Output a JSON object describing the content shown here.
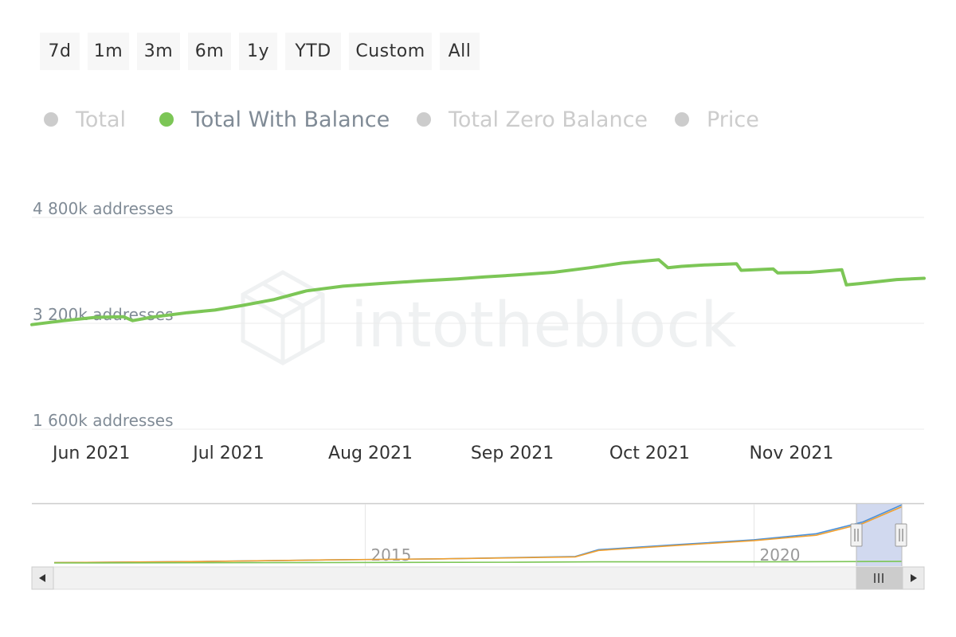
{
  "range_selector": {
    "buttons": [
      {
        "label": "7d",
        "name": "range-7d-button"
      },
      {
        "label": "1m",
        "name": "range-1m-button"
      },
      {
        "label": "3m",
        "name": "range-3m-button"
      },
      {
        "label": "6m",
        "name": "range-6m-button"
      },
      {
        "label": "1y",
        "name": "range-1y-button"
      },
      {
        "label": "YTD",
        "name": "range-ytd-button"
      },
      {
        "label": "Custom",
        "name": "range-custom-button"
      },
      {
        "label": "All",
        "name": "range-all-button"
      }
    ]
  },
  "legend": {
    "items": [
      {
        "label": "Total",
        "color": "#cccccc",
        "visible": false
      },
      {
        "label": "Total With Balance",
        "color": "#7cc656",
        "visible": true
      },
      {
        "label": "Total Zero Balance",
        "color": "#cccccc",
        "visible": false
      },
      {
        "label": "Price",
        "color": "#cccccc",
        "visible": false
      }
    ]
  },
  "watermark": "intotheblock",
  "chart_data": {
    "type": "line",
    "title": "",
    "xlabel": "",
    "ylabel": "",
    "y_tick_values": [
      1600000,
      3200000,
      4800000
    ],
    "y_tick_labels": [
      "1 600k addresses",
      "3 200k addresses",
      "4 800k addresses"
    ],
    "ylim": [
      1600000,
      4800000
    ],
    "xlim": [
      "2021-05-19",
      "2021-11-30"
    ],
    "x_tick_values": [
      "2021-06-01",
      "2021-07-01",
      "2021-08-01",
      "2021-09-01",
      "2021-10-01",
      "2021-11-01"
    ],
    "x_tick_labels": [
      "Jun 2021",
      "Jul 2021",
      "Aug 2021",
      "Sep 2021",
      "Oct 2021",
      "Nov 2021"
    ],
    "grid": true,
    "series": [
      {
        "name": "Total With Balance",
        "color": "#7cc656",
        "x": [
          "2021-05-19",
          "2021-05-26",
          "2021-06-02",
          "2021-06-08",
          "2021-06-10",
          "2021-06-14",
          "2021-06-22",
          "2021-06-28",
          "2021-07-04",
          "2021-07-11",
          "2021-07-18",
          "2021-07-26",
          "2021-08-03",
          "2021-08-12",
          "2021-08-20",
          "2021-08-26",
          "2021-09-02",
          "2021-09-10",
          "2021-09-18",
          "2021-09-25",
          "2021-10-03",
          "2021-10-05",
          "2021-10-08",
          "2021-10-13",
          "2021-10-20",
          "2021-10-21",
          "2021-10-28",
          "2021-10-29",
          "2021-11-05",
          "2021-11-12",
          "2021-11-13",
          "2021-11-16",
          "2021-11-24",
          "2021-11-30"
        ],
        "y": [
          3180000,
          3240000,
          3290000,
          3300000,
          3240000,
          3290000,
          3360000,
          3400000,
          3470000,
          3560000,
          3690000,
          3760000,
          3800000,
          3840000,
          3870000,
          3900000,
          3930000,
          3970000,
          4040000,
          4110000,
          4160000,
          4040000,
          4060000,
          4080000,
          4100000,
          4000000,
          4020000,
          3960000,
          3970000,
          4010000,
          3780000,
          3800000,
          3860000,
          3880000
        ]
      }
    ]
  },
  "navigator": {
    "x_tick_labels": [
      "2015",
      "2020"
    ],
    "series": [
      {
        "name": "Total",
        "color": "#4a90d9",
        "x": [
          2011.0,
          2013.0,
          2014.5,
          2016.0,
          2017.7,
          2018.0,
          2019.0,
          2020.0,
          2020.8,
          2021.4,
          2021.9
        ],
        "y": [
          0.3,
          0.6,
          1.0,
          1.3,
          1.9,
          3.7,
          5.0,
          6.3,
          7.9,
          11.0,
          15.5
        ]
      },
      {
        "name": "Total Zero Balance",
        "color": "#f0a030",
        "x": [
          2011.0,
          2013.0,
          2014.5,
          2016.0,
          2017.7,
          2018.0,
          2019.0,
          2020.0,
          2020.8,
          2021.4,
          2021.9
        ],
        "y": [
          0.3,
          0.6,
          1.0,
          1.3,
          1.8,
          3.5,
          4.8,
          6.1,
          7.5,
          10.6,
          15.0
        ]
      },
      {
        "name": "Total With Balance",
        "color": "#7cc656",
        "x": [
          2011.0,
          2014.0,
          2017.0,
          2018.0,
          2020.0,
          2021.9
        ],
        "y": [
          0.2,
          0.3,
          0.4,
          0.5,
          0.5,
          0.6
        ]
      }
    ]
  }
}
